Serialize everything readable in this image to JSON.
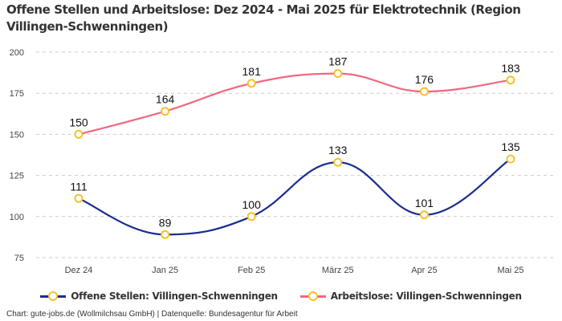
{
  "chart_data": {
    "type": "line",
    "title": "Offene Stellen und Arbeitslose: Dez 2024 - Mai 2025 für Elektrotechnik (Region Villingen-Schwenningen)",
    "xlabel": "",
    "ylabel": "",
    "categories": [
      "Dez 24",
      "Jan 25",
      "Feb 25",
      "März 25",
      "Apr 25",
      "Mai 25"
    ],
    "yticks": [
      75,
      100,
      125,
      150,
      175,
      200
    ],
    "ylim": [
      75,
      200
    ],
    "grid": true,
    "legend_position": "bottom",
    "series": [
      {
        "name": "Offene Stellen: Villingen-Schwenningen",
        "color": "#1a2d8c",
        "marker_color": "#f5c228",
        "values": [
          111,
          89,
          100,
          133,
          101,
          135
        ]
      },
      {
        "name": "Arbeitslose: Villingen-Schwenningen",
        "color": "#f2677f",
        "marker_color": "#f5c228",
        "values": [
          150,
          164,
          181,
          187,
          176,
          183
        ]
      }
    ]
  },
  "footer": "Chart: gute-jobs.de (Wollmilchsau GmbH) | Datenquelle: Bundesagentur für Arbeit"
}
